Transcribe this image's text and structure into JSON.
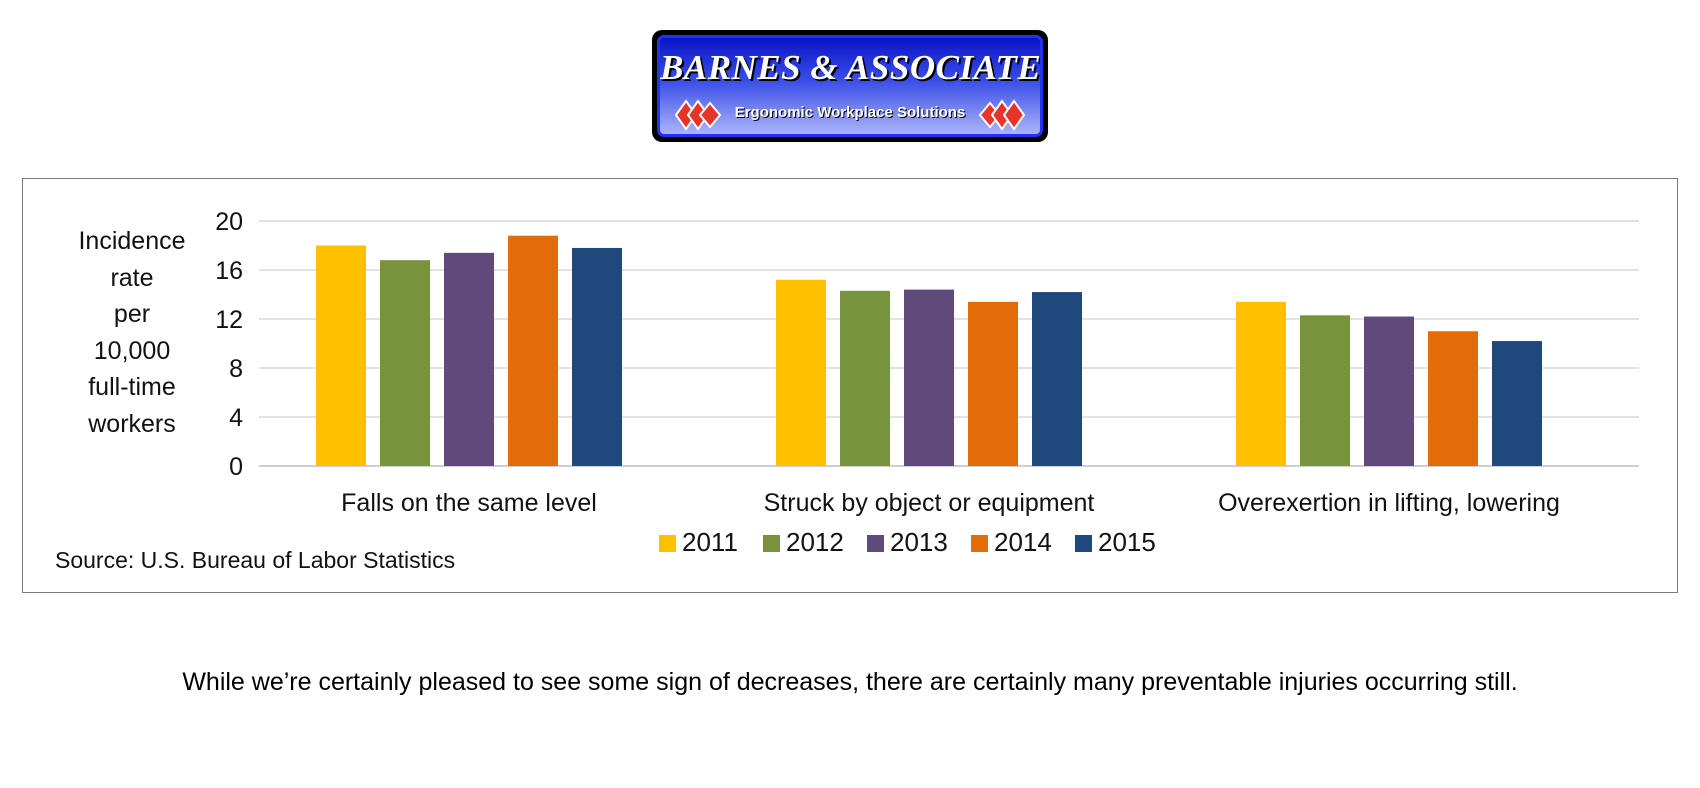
{
  "logo": {
    "title": "BARNES & ASSOCIATES",
    "subtitle": "Ergonomic Workplace Solutions",
    "colors": {
      "background": "#1f2fe0",
      "diamonds": "#e8332a"
    }
  },
  "caption": "While we’re certainly pleased to see some sign of decreases, there are certainly many preventable injuries occurring still.",
  "chart_data": {
    "type": "bar",
    "title": "",
    "ylabel_lines": [
      "Incidence",
      "rate",
      "per",
      "10,000",
      "full-time",
      "workers"
    ],
    "xlabel": "",
    "source": "Source: U.S. Bureau of Labor Statistics",
    "ylim": [
      0,
      20
    ],
    "yticks": [
      "0",
      "4",
      "8",
      "12",
      "16",
      "20"
    ],
    "grid": true,
    "legend_position": "bottom",
    "categories": [
      "Falls on the same level",
      "Struck by object or equipment",
      "Overexertion in lifting, lowering"
    ],
    "series": [
      {
        "name": "2011",
        "color": "#ffc000",
        "values": [
          18.0,
          15.2,
          13.4
        ]
      },
      {
        "name": "2012",
        "color": "#77933c",
        "values": [
          16.8,
          14.3,
          12.3
        ]
      },
      {
        "name": "2013",
        "color": "#604a7b",
        "values": [
          17.4,
          14.4,
          12.2
        ]
      },
      {
        "name": "2014",
        "color": "#e36c09",
        "values": [
          18.8,
          13.4,
          11.0
        ]
      },
      {
        "name": "2015",
        "color": "#1f497d",
        "values": [
          17.8,
          14.2,
          10.2
        ]
      }
    ]
  }
}
